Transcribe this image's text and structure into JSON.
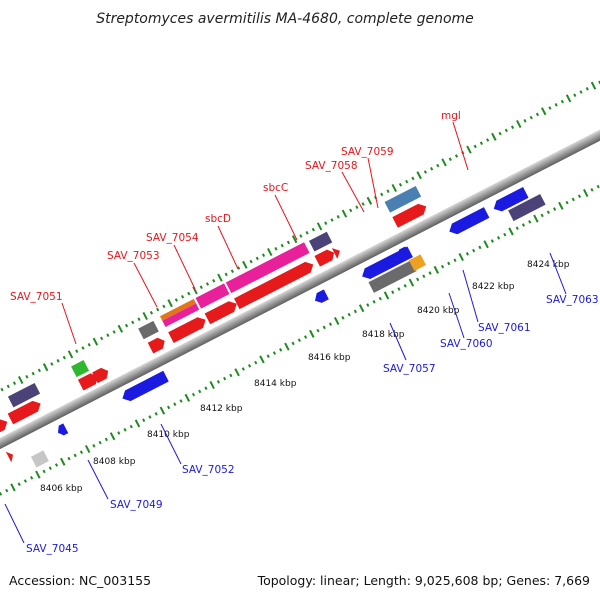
{
  "title": "Streptomyces avermitilis MA-4680, complete genome",
  "footer": {
    "accession": "Accession: NC_003155",
    "summary": "Topology: linear; Length: 9,025,608 bp; Genes: 7,669"
  },
  "colors": {
    "forward_label": "#e8141c",
    "reverse_label": "#1a1ae0",
    "tick": "#1f8a1f",
    "axis": "#8e8e8e"
  },
  "scale_labels": [
    "8406 kbp",
    "8408 kbp",
    "8410 kbp",
    "8412 kbp",
    "8414 kbp",
    "8416 kbp",
    "8418 kbp",
    "8420 kbp",
    "8422 kbp",
    "8424 kbp"
  ],
  "forward_labels": [
    "SAV_7051",
    "SAV_7053",
    "SAV_7054",
    "sbcD",
    "sbcC",
    "SAV_7058",
    "SAV_7059",
    "mgl"
  ],
  "reverse_labels": [
    "SAV_7045",
    "SAV_7049",
    "SAV_7052",
    "SAV_7057",
    "SAV_7060",
    "SAV_7061",
    "SAV_7063"
  ]
}
